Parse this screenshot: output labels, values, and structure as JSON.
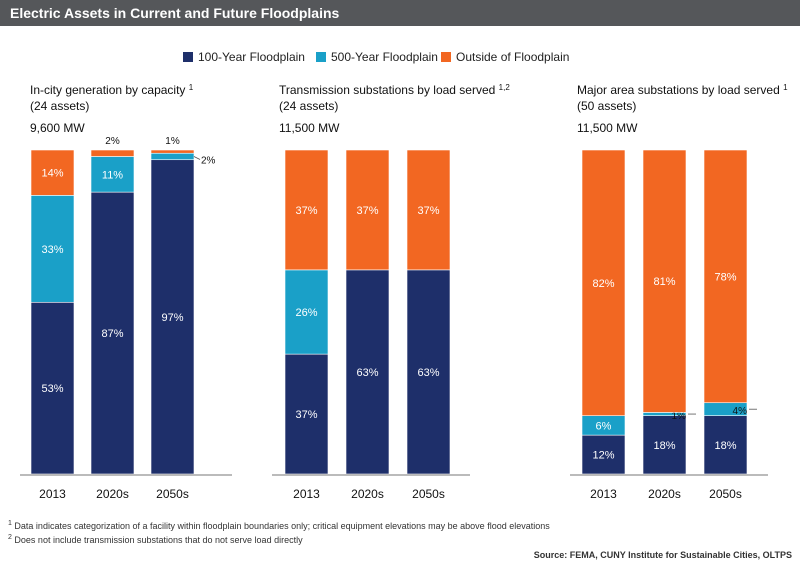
{
  "header": {
    "title": "Electric Assets in Current and Future Floodplains"
  },
  "colors": {
    "header_bg": "#55575a",
    "series_100": "#1e2f6a",
    "series_500": "#1aa0c8",
    "series_outside": "#f26722",
    "axis": "#777777"
  },
  "legend": [
    {
      "label": "100-Year Floodplain",
      "color": "#1e2f6a"
    },
    {
      "label": "500-Year Floodplain",
      "color": "#1aa0c8"
    },
    {
      "label": "Outside of Floodplain",
      "color": "#f26722"
    }
  ],
  "chart_data": [
    {
      "type": "bar",
      "stacked": true,
      "title": "In-city generation by capacity",
      "title_sup": "1",
      "subtitle": "(24 assets)",
      "capacity_label": "9,600 MW",
      "categories": [
        "2013",
        "2020s",
        "2050s"
      ],
      "series": [
        {
          "name": "100-Year Floodplain",
          "values": [
            53,
            87,
            97
          ],
          "labels": [
            "53%",
            "87%",
            "97%"
          ]
        },
        {
          "name": "500-Year Floodplain",
          "values": [
            33,
            11,
            2
          ],
          "labels": [
            "33%",
            "11%",
            "2%"
          ]
        },
        {
          "name": "Outside of Floodplain",
          "values": [
            14,
            2,
            1
          ],
          "labels": [
            "14%",
            "2%",
            "1%"
          ]
        }
      ],
      "ylim": [
        0,
        100
      ]
    },
    {
      "type": "bar",
      "stacked": true,
      "title": "Transmission substations by load served",
      "title_sup": "1,2",
      "subtitle": "(24 assets)",
      "capacity_label": "11,500 MW",
      "categories": [
        "2013",
        "2020s",
        "2050s"
      ],
      "series": [
        {
          "name": "100-Year Floodplain",
          "values": [
            37,
            63,
            63
          ],
          "labels": [
            "37%",
            "63%",
            "63%"
          ]
        },
        {
          "name": "500-Year Floodplain",
          "values": [
            26,
            0,
            0
          ],
          "labels": [
            "26%",
            "",
            ""
          ]
        },
        {
          "name": "Outside of Floodplain",
          "values": [
            37,
            37,
            37
          ],
          "labels": [
            "37%",
            "37%",
            "37%"
          ]
        }
      ],
      "ylim": [
        0,
        100
      ]
    },
    {
      "type": "bar",
      "stacked": true,
      "title": "Major area substations by load served",
      "title_sup": "1",
      "subtitle": "(50 assets)",
      "capacity_label": "11,500 MW",
      "categories": [
        "2013",
        "2020s",
        "2050s"
      ],
      "series": [
        {
          "name": "100-Year Floodplain",
          "values": [
            12,
            18,
            18
          ],
          "labels": [
            "12%",
            "18%",
            "18%"
          ]
        },
        {
          "name": "500-Year Floodplain",
          "values": [
            6,
            1,
            4
          ],
          "labels": [
            "6%",
            "1%",
            "4%"
          ]
        },
        {
          "name": "Outside of Floodplain",
          "values": [
            82,
            81,
            78
          ],
          "labels": [
            "82%",
            "81%",
            "78%"
          ]
        }
      ],
      "ylim": [
        0,
        100
      ]
    }
  ],
  "footnotes": [
    {
      "mark": "1",
      "text": "Data indicates categorization of a facility within floodplain boundaries only; critical equipment elevations may be above flood elevations"
    },
    {
      "mark": "2",
      "text": "Does not include transmission substations that do not serve load directly"
    }
  ],
  "source": "Source: FEMA, CUNY Institute for Sustainable Cities, OLTPS"
}
